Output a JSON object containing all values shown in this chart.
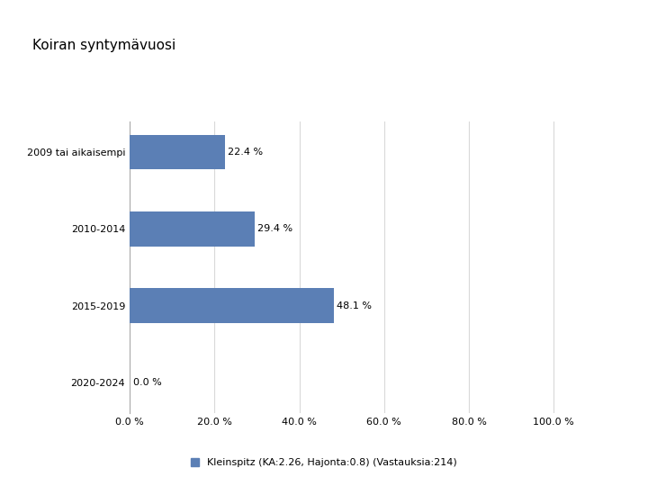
{
  "title": "Koiran syntymävuosi",
  "categories": [
    "2009 tai aikaisempi",
    "2010-2014",
    "2015-2019",
    "2020-2024"
  ],
  "values": [
    22.4,
    29.4,
    48.1,
    0.0
  ],
  "labels": [
    "22.4 %",
    "29.4 %",
    "48.1 %",
    "0.0 %"
  ],
  "bar_color": "#5b7fb5",
  "xticks": [
    0,
    20,
    40,
    60,
    80,
    100
  ],
  "xtick_labels": [
    "0.0 %",
    "20.0 %",
    "40.0 %",
    "60.0 %",
    "80.0 %",
    "100.0 %"
  ],
  "xlim": [
    0,
    110
  ],
  "legend_text": "Kleinspitz (KA:2.26, Hajonta:0.8) (Vastauksia:214)",
  "title_fontsize": 11,
  "tick_fontsize": 8,
  "label_fontsize": 8,
  "legend_fontsize": 8,
  "background_color": "#ffffff",
  "grid_color": "#d9d9d9"
}
